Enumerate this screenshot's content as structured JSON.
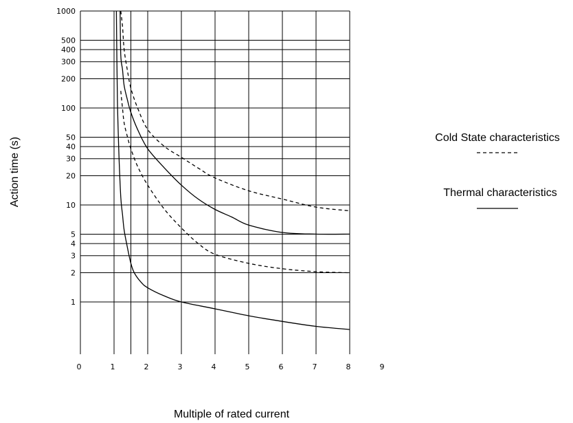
{
  "chart_data": {
    "type": "line",
    "xlabel": "Multiple of rated current",
    "ylabel": "Action time (s)",
    "x_ticks": [
      "0",
      "1",
      "2",
      "3",
      "4",
      "5",
      "6",
      "7",
      "8",
      "9"
    ],
    "y_ticks": [
      "1",
      "2",
      "3",
      "4",
      "5",
      "10",
      "20",
      "30",
      "40",
      "50",
      "100",
      "200",
      "300",
      "400",
      "500",
      "1000"
    ],
    "xlim": [
      0,
      9
    ],
    "ylim": [
      0.23,
      1000
    ],
    "y_scale": "log",
    "x_vertical_grid_extra": [
      1.5
    ],
    "grid": true,
    "legend": [
      {
        "label": "Cold State characteristics",
        "style": "dashed"
      },
      {
        "label": "Thermal characteristics",
        "style": "solid"
      }
    ],
    "series": [
      {
        "style": "dashed",
        "x": [
          1.2,
          1.25,
          1.3,
          1.4,
          1.5,
          1.7,
          2.0,
          2.5,
          3.0,
          3.5,
          4.0,
          5.0,
          6.0,
          7.0,
          8.0
        ],
        "y": [
          1000,
          700,
          400,
          240,
          160,
          100,
          60,
          40,
          31,
          24,
          19,
          14,
          11.5,
          9.5,
          8.7
        ]
      },
      {
        "style": "dashed",
        "x": [
          1.2,
          1.25,
          1.3,
          1.4,
          1.5,
          1.7,
          2.0,
          2.5,
          3.0,
          3.5,
          4.0,
          5.0,
          6.0,
          7.0,
          8.0
        ],
        "y": [
          150,
          100,
          70,
          50,
          38,
          25,
          16,
          9,
          5.8,
          4.0,
          3.1,
          2.5,
          2.2,
          2.05,
          2.0
        ]
      },
      {
        "style": "solid",
        "x": [
          1.18,
          1.2,
          1.25,
          1.3,
          1.4,
          1.5,
          1.7,
          2.0,
          2.5,
          3.0,
          3.5,
          4.0,
          4.5,
          5.0,
          6.0,
          7.0,
          8.0
        ],
        "y": [
          1000,
          350,
          250,
          170,
          120,
          90,
          60,
          38,
          24,
          16,
          11.5,
          9,
          7.5,
          6.2,
          5.2,
          5.0,
          5.0
        ]
      },
      {
        "style": "solid",
        "x": [
          1.07,
          1.1,
          1.15,
          1.2,
          1.25,
          1.3,
          1.4,
          1.5,
          1.6,
          1.8,
          2.0,
          2.5,
          3.0,
          4.0,
          5.0,
          6.0,
          7.0,
          8.0
        ],
        "y": [
          1000,
          120,
          30,
          12,
          8,
          5.5,
          3.6,
          2.5,
          2.0,
          1.6,
          1.4,
          1.15,
          1.0,
          0.85,
          0.72,
          0.63,
          0.56,
          0.52
        ]
      }
    ]
  }
}
